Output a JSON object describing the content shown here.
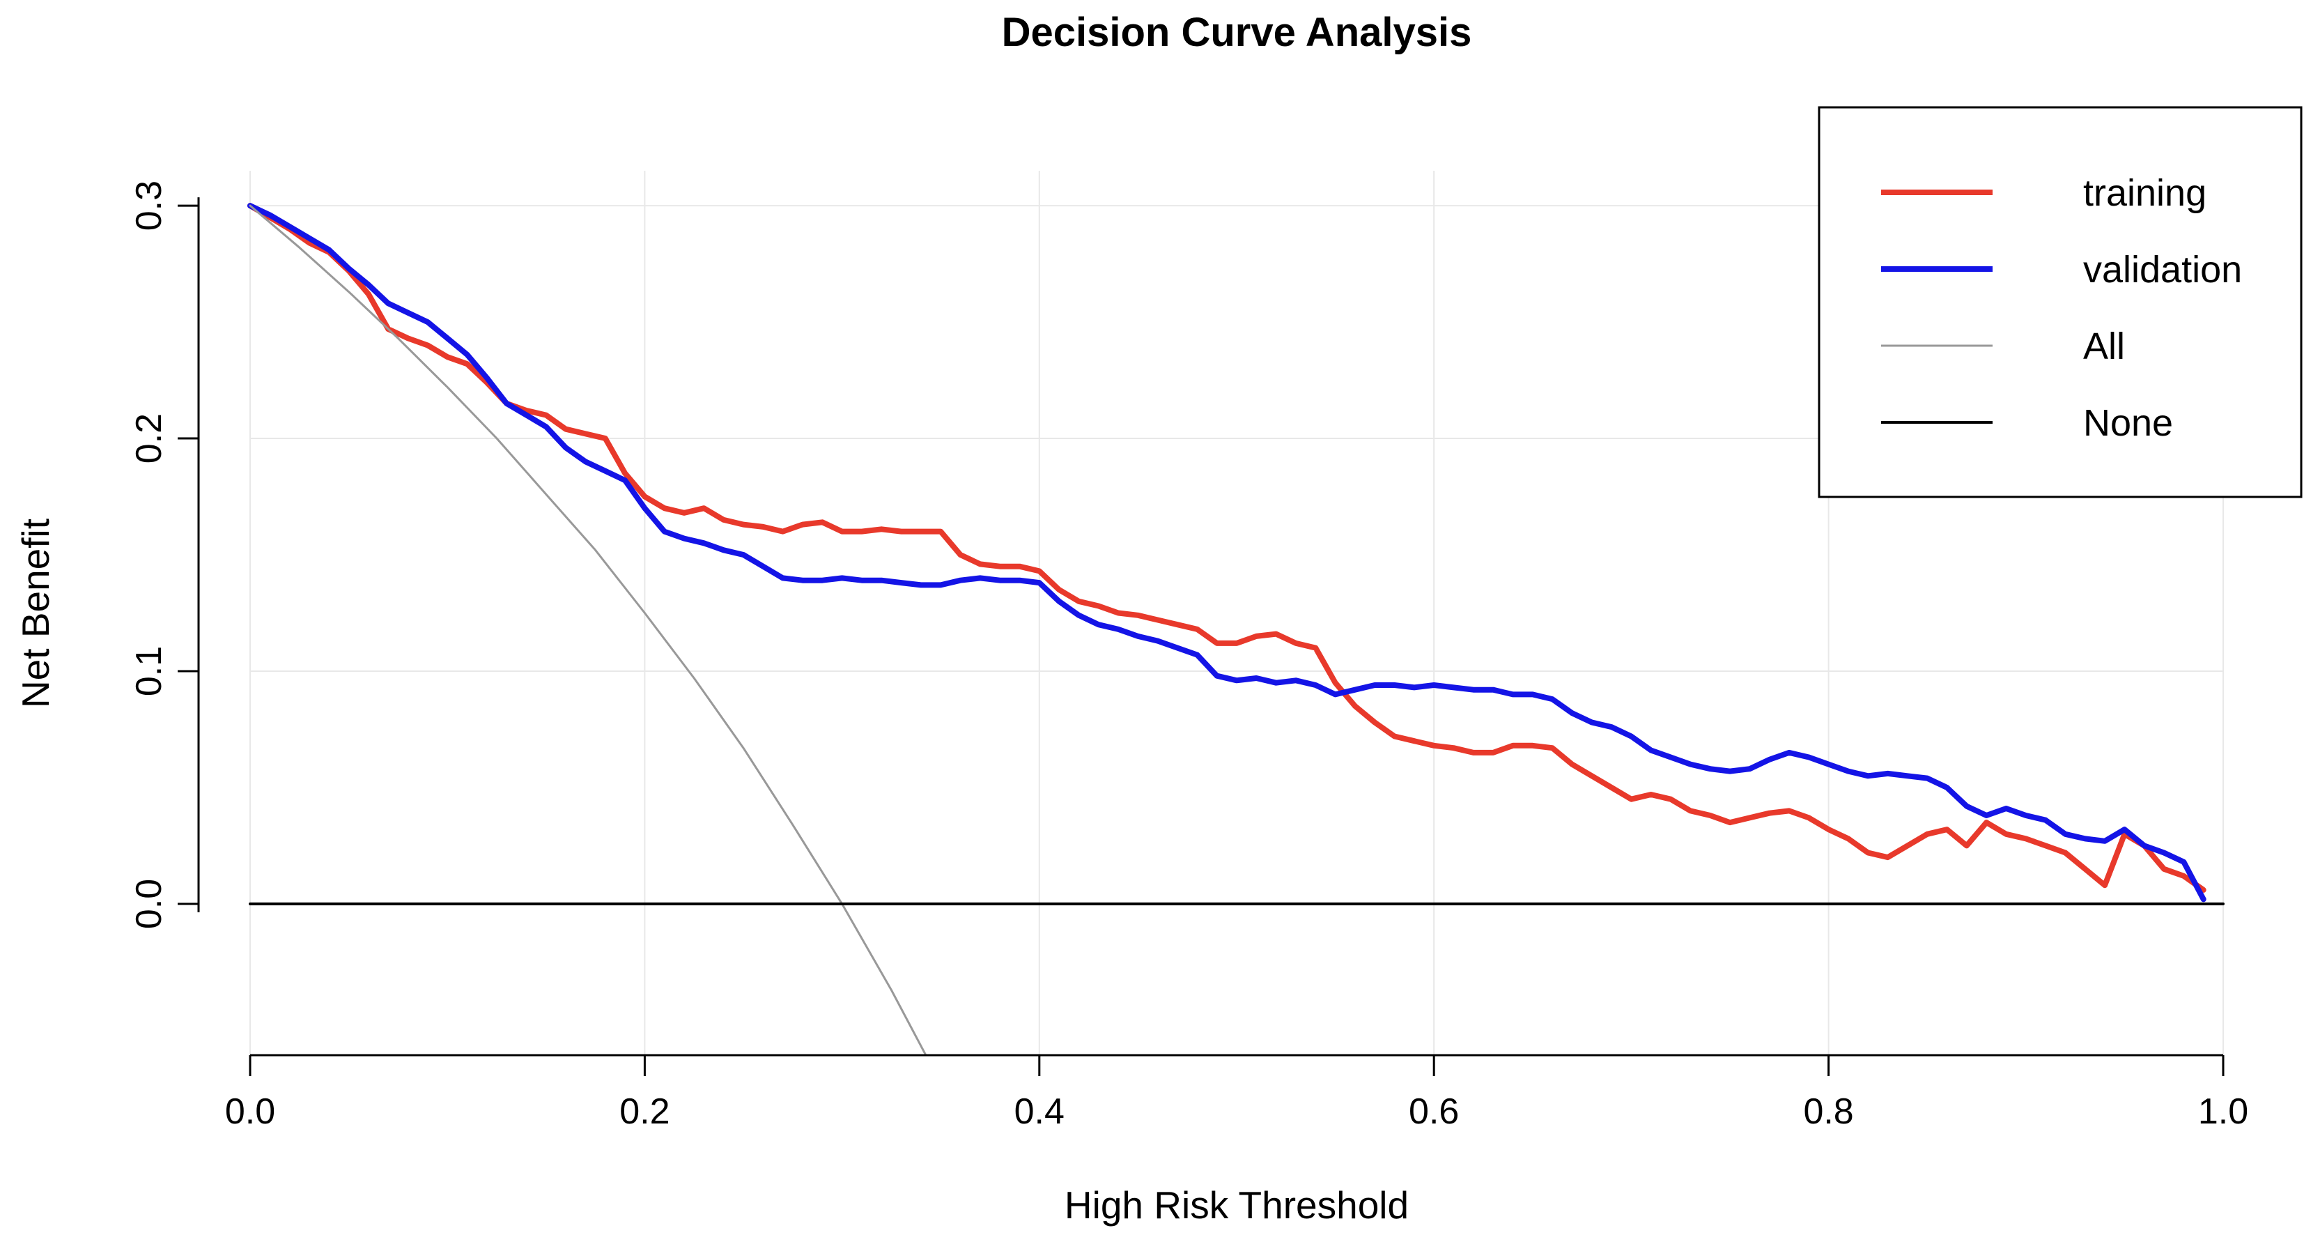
{
  "chart_data": {
    "type": "line",
    "title": "Decision Curve Analysis",
    "xlabel": "High Risk Threshold",
    "ylabel": "Net Benefit",
    "xlim": [
      0.0,
      1.0
    ],
    "ylim": [
      -0.065,
      0.315
    ],
    "xticks": [
      0.0,
      0.2,
      0.4,
      0.6,
      0.8,
      1.0
    ],
    "xtick_labels": [
      "0.0",
      "0.2",
      "0.4",
      "0.6",
      "0.8",
      "1.0"
    ],
    "yticks": [
      0.0,
      0.1,
      0.2,
      0.3
    ],
    "ytick_labels": [
      "0.0",
      "0.1",
      "0.2",
      "0.3"
    ],
    "grid": true,
    "grid_color": "#e8e8e8",
    "legend_position": "top-right",
    "series": [
      {
        "name": "training",
        "color": "#e8392b",
        "width": 8,
        "x_start": 0.0,
        "x_step": 0.01,
        "y": [
          0.3,
          0.295,
          0.29,
          0.284,
          0.28,
          0.272,
          0.262,
          0.247,
          0.243,
          0.24,
          0.235,
          0.232,
          0.224,
          0.215,
          0.212,
          0.21,
          0.204,
          0.202,
          0.2,
          0.185,
          0.175,
          0.17,
          0.168,
          0.17,
          0.165,
          0.163,
          0.162,
          0.16,
          0.163,
          0.164,
          0.16,
          0.16,
          0.161,
          0.16,
          0.16,
          0.16,
          0.15,
          0.146,
          0.145,
          0.145,
          0.143,
          0.135,
          0.13,
          0.128,
          0.125,
          0.124,
          0.122,
          0.12,
          0.118,
          0.112,
          0.112,
          0.115,
          0.116,
          0.112,
          0.11,
          0.095,
          0.085,
          0.078,
          0.072,
          0.07,
          0.068,
          0.067,
          0.065,
          0.065,
          0.068,
          0.068,
          0.067,
          0.06,
          0.055,
          0.05,
          0.045,
          0.047,
          0.045,
          0.04,
          0.038,
          0.035,
          0.037,
          0.039,
          0.04,
          0.037,
          0.032,
          0.028,
          0.022,
          0.02,
          0.025,
          0.03,
          0.032,
          0.025,
          0.035,
          0.03,
          0.028,
          0.025,
          0.022,
          0.015,
          0.008,
          0.03,
          0.025,
          0.015,
          0.012,
          0.006
        ]
      },
      {
        "name": "validation",
        "color": "#1414e6",
        "width": 8,
        "x_start": 0.0,
        "x_step": 0.01,
        "y": [
          0.3,
          0.296,
          0.291,
          0.286,
          0.281,
          0.273,
          0.266,
          0.258,
          0.254,
          0.25,
          0.243,
          0.236,
          0.226,
          0.215,
          0.21,
          0.205,
          0.196,
          0.19,
          0.186,
          0.182,
          0.17,
          0.16,
          0.157,
          0.155,
          0.152,
          0.15,
          0.145,
          0.14,
          0.139,
          0.139,
          0.14,
          0.139,
          0.139,
          0.138,
          0.137,
          0.137,
          0.139,
          0.14,
          0.139,
          0.139,
          0.138,
          0.13,
          0.124,
          0.12,
          0.118,
          0.115,
          0.113,
          0.11,
          0.107,
          0.098,
          0.096,
          0.097,
          0.095,
          0.096,
          0.094,
          0.09,
          0.092,
          0.094,
          0.094,
          0.093,
          0.094,
          0.093,
          0.092,
          0.092,
          0.09,
          0.09,
          0.088,
          0.082,
          0.078,
          0.076,
          0.072,
          0.066,
          0.063,
          0.06,
          0.058,
          0.057,
          0.058,
          0.062,
          0.065,
          0.063,
          0.06,
          0.057,
          0.055,
          0.056,
          0.055,
          0.054,
          0.05,
          0.042,
          0.038,
          0.041,
          0.038,
          0.036,
          0.03,
          0.028,
          0.027,
          0.032,
          0.025,
          0.022,
          0.018,
          0.002
        ]
      },
      {
        "name": "All",
        "color": "#999999",
        "width": 3,
        "x": [
          0.0,
          0.025,
          0.05,
          0.075,
          0.1,
          0.125,
          0.15,
          0.175,
          0.2,
          0.225,
          0.25,
          0.275,
          0.3,
          0.325,
          0.345
        ],
        "y": [
          0.3,
          0.282,
          0.263,
          0.243,
          0.222,
          0.2,
          0.176,
          0.152,
          0.125,
          0.097,
          0.067,
          0.034,
          0.0,
          -0.037,
          -0.069
        ]
      },
      {
        "name": "None",
        "color": "#000000",
        "width": 4,
        "x": [
          0.0,
          1.0
        ],
        "y": [
          0.0,
          0.0
        ]
      }
    ]
  }
}
